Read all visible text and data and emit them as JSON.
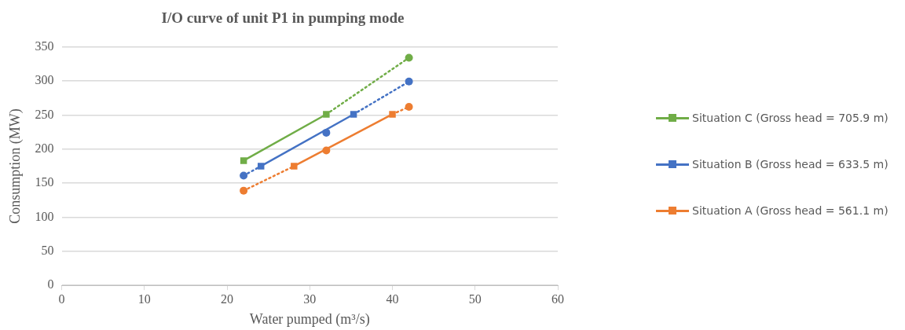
{
  "chart_data": {
    "type": "line",
    "title": "I/O curve of unit P1 in pumping mode",
    "xlabel": "Water pumped (m³/s)",
    "ylabel": "Consumption (MW)",
    "xlim": [
      0,
      60
    ],
    "xticks": [
      0,
      10,
      20,
      30,
      40,
      50,
      60
    ],
    "ylim": [
      0,
      350
    ],
    "yticks": [
      0,
      50,
      100,
      150,
      200,
      250,
      300,
      350
    ],
    "grid": "y",
    "legend": "right",
    "series": [
      {
        "name": "Situation A (Gross head = 561.1 m)",
        "color": "#ed7d31",
        "marker": "square",
        "line_style": "solid",
        "x": [
          28.1,
          40
        ],
        "values": [
          175,
          251
        ]
      },
      {
        "color": "#ed7d31",
        "marker": "none",
        "line_style": "dotted",
        "x": [
          22,
          28.1
        ],
        "values": [
          139,
          175
        ]
      },
      {
        "color": "#ed7d31",
        "marker": "none",
        "line_style": "dotted",
        "x": [
          40,
          42
        ],
        "values": [
          251,
          262
        ]
      },
      {
        "color": "#ed7d31",
        "type": "scatter",
        "marker": "circle",
        "x": [
          22,
          32,
          42
        ],
        "values": [
          139,
          198,
          262
        ]
      },
      {
        "name": "Situation B (Gross head = 633.5 m)",
        "color": "#4472c4",
        "marker": "square",
        "line_style": "solid",
        "x": [
          24.1,
          35.3
        ],
        "values": [
          175,
          251
        ]
      },
      {
        "color": "#4472c4",
        "marker": "none",
        "line_style": "dotted",
        "x": [
          22,
          24.1
        ],
        "values": [
          161,
          175
        ]
      },
      {
        "color": "#4472c4",
        "marker": "none",
        "line_style": "dotted",
        "x": [
          35.3,
          42
        ],
        "values": [
          251,
          299
        ]
      },
      {
        "color": "#4472c4",
        "type": "scatter",
        "marker": "circle",
        "x": [
          22,
          32,
          42
        ],
        "values": [
          161,
          224,
          299
        ]
      },
      {
        "name": "Situation C (Gross head = 705.9 m)",
        "color": "#70ad47",
        "marker": "square",
        "line_style": "solid",
        "x": [
          22,
          32
        ],
        "values": [
          183,
          251
        ]
      },
      {
        "color": "#70ad47",
        "marker": "none",
        "line_style": "dotted",
        "x": [
          32,
          42
        ],
        "values": [
          251,
          334
        ]
      },
      {
        "color": "#70ad47",
        "type": "scatter",
        "marker": "circle",
        "x": [
          42
        ],
        "values": [
          334
        ]
      }
    ]
  }
}
